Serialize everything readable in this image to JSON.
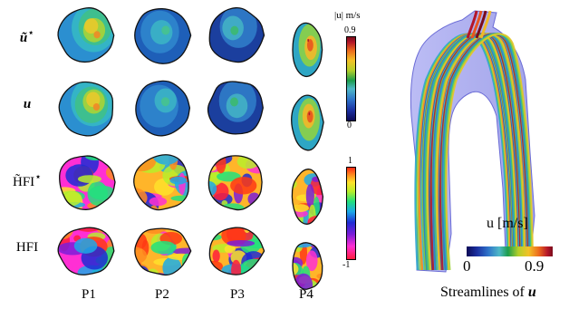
{
  "rows": [
    {
      "label": "ũ",
      "sup": "⋆",
      "bold": true,
      "scheme": "mag"
    },
    {
      "label": "u",
      "sup": "",
      "bold": true,
      "scheme": "mag"
    },
    {
      "label": "H̃FI",
      "sup": "⋆",
      "bold": false,
      "scheme": "hfi"
    },
    {
      "label": "HFI",
      "sup": "",
      "bold": false,
      "scheme": "hfi"
    }
  ],
  "columns": [
    "P1",
    "P2",
    "P3",
    "P4"
  ],
  "colorbar_mag": {
    "title": "|u| m/s",
    "max": "0.9",
    "min": "0"
  },
  "colorbar_hfi": {
    "max": "1",
    "min": "-1"
  },
  "streamlines": {
    "colorbar_title": "u [m/s]",
    "min": "0",
    "max": "0.9",
    "caption_text": "Streamlines of ",
    "caption_symbol": "u"
  }
}
